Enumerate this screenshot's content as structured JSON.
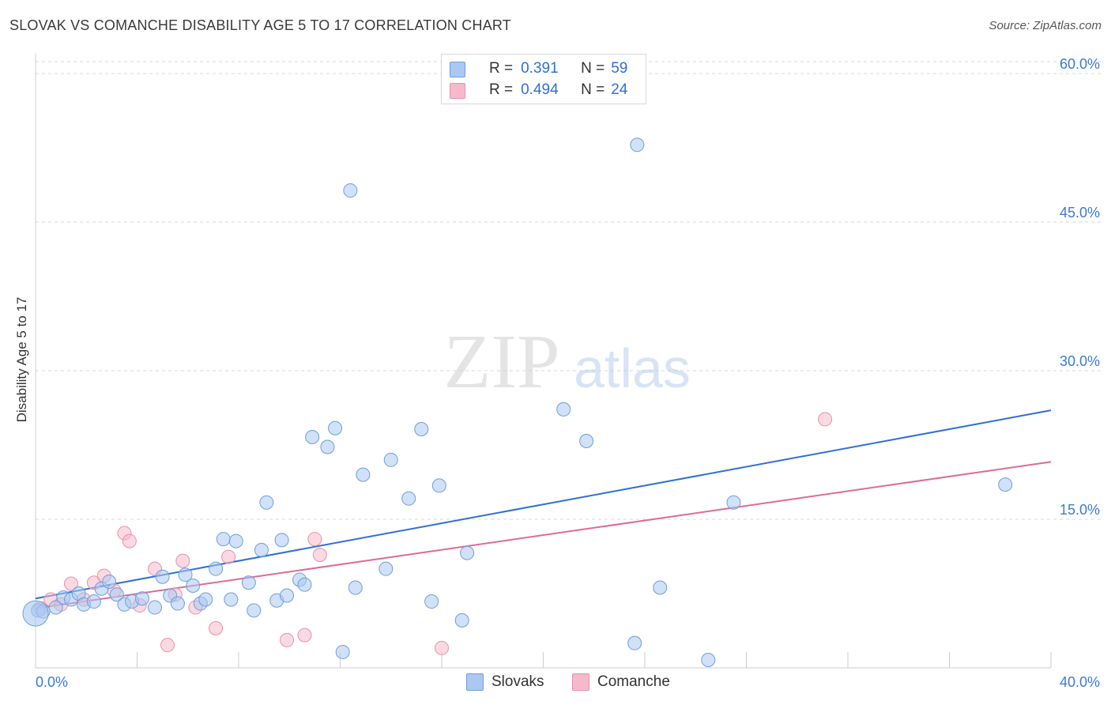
{
  "header": {
    "title": "SLOVAK VS COMANCHE DISABILITY AGE 5 TO 17 CORRELATION CHART",
    "source": "Source: ZipAtlas.com"
  },
  "watermark": {
    "zip": "ZIP",
    "atlas": "atlas"
  },
  "legend": {
    "r_label": "R =",
    "n_label": "N =",
    "rows": [
      {
        "r": "0.391",
        "n": "59",
        "color": "#aac8f2"
      },
      {
        "r": "0.494",
        "n": "24",
        "color": "#f6b9cb"
      }
    ]
  },
  "colors": {
    "slovaks_fill": "#aac8f2",
    "slovaks_stroke": "#6f9fd8",
    "slovaks_line": "#2f6fd6",
    "comanche_fill": "#f6b9cb",
    "comanche_stroke": "#e592ad",
    "comanche_line": "#e06a94",
    "tick_label": "#3b7bd4",
    "grid": "#d9d9d9"
  },
  "chart_data": {
    "type": "scatter",
    "title": "SLOVAK VS COMANCHE DISABILITY AGE 5 TO 17 CORRELATION CHART",
    "xlabel": "",
    "ylabel": "Disability Age 5 to 17",
    "xlim": [
      0,
      40
    ],
    "ylim": [
      0,
      62
    ],
    "x_tick_labels": [
      "0.0%",
      "40.0%"
    ],
    "y_ticks": [
      15,
      30,
      45,
      60
    ],
    "y_tick_labels": [
      "15.0%",
      "30.0%",
      "45.0%",
      "60.0%"
    ],
    "grid": "horizontal-dashed",
    "legend_position": "top-center",
    "series": [
      {
        "name": "Slovaks",
        "points": [
          [
            0.1,
            5.8
          ],
          [
            0.3,
            5.7
          ],
          [
            0.8,
            6.1
          ],
          [
            1.1,
            7.1
          ],
          [
            1.4,
            6.9
          ],
          [
            1.7,
            7.5
          ],
          [
            1.9,
            6.4
          ],
          [
            2.3,
            6.7
          ],
          [
            2.6,
            8.0
          ],
          [
            2.9,
            8.7
          ],
          [
            3.2,
            7.4
          ],
          [
            3.5,
            6.4
          ],
          [
            3.8,
            6.7
          ],
          [
            4.2,
            7.0
          ],
          [
            4.7,
            6.1
          ],
          [
            5.0,
            9.2
          ],
          [
            5.3,
            7.3
          ],
          [
            5.6,
            6.5
          ],
          [
            5.9,
            9.4
          ],
          [
            6.2,
            8.3
          ],
          [
            6.5,
            6.5
          ],
          [
            6.7,
            6.9
          ],
          [
            7.1,
            10.0
          ],
          [
            7.4,
            13.0
          ],
          [
            7.7,
            6.9
          ],
          [
            7.9,
            12.8
          ],
          [
            8.4,
            8.6
          ],
          [
            8.6,
            5.8
          ],
          [
            8.9,
            11.9
          ],
          [
            9.1,
            16.7
          ],
          [
            9.5,
            6.8
          ],
          [
            9.7,
            12.9
          ],
          [
            9.9,
            7.3
          ],
          [
            10.4,
            8.9
          ],
          [
            10.6,
            8.4
          ],
          [
            10.9,
            23.3
          ],
          [
            11.5,
            22.3
          ],
          [
            11.8,
            24.2
          ],
          [
            12.1,
            1.6
          ],
          [
            12.4,
            48.2
          ],
          [
            12.6,
            8.1
          ],
          [
            12.9,
            19.5
          ],
          [
            13.8,
            10.0
          ],
          [
            14.0,
            21.0
          ],
          [
            14.7,
            17.1
          ],
          [
            15.2,
            24.1
          ],
          [
            15.6,
            6.7
          ],
          [
            15.9,
            18.4
          ],
          [
            16.8,
            4.8
          ],
          [
            17.0,
            11.6
          ],
          [
            20.8,
            26.1
          ],
          [
            21.7,
            22.9
          ],
          [
            23.6,
            2.5
          ],
          [
            23.7,
            52.8
          ],
          [
            24.6,
            8.1
          ],
          [
            26.5,
            0.8
          ],
          [
            27.5,
            16.7
          ],
          [
            38.2,
            18.5
          ],
          [
            0.0,
            5.5
          ]
        ],
        "trend": {
          "x": [
            0,
            40
          ],
          "y": [
            7.0,
            26.0
          ]
        }
      },
      {
        "name": "Comanche",
        "points": [
          [
            0.2,
            6.0
          ],
          [
            0.6,
            6.9
          ],
          [
            1.0,
            6.4
          ],
          [
            1.4,
            8.5
          ],
          [
            1.9,
            6.9
          ],
          [
            2.3,
            8.6
          ],
          [
            2.7,
            9.3
          ],
          [
            3.1,
            7.8
          ],
          [
            3.5,
            13.6
          ],
          [
            3.7,
            12.8
          ],
          [
            4.1,
            6.3
          ],
          [
            4.7,
            10.0
          ],
          [
            5.2,
            2.3
          ],
          [
            5.5,
            7.4
          ],
          [
            5.8,
            10.8
          ],
          [
            6.3,
            6.1
          ],
          [
            7.1,
            4.0
          ],
          [
            7.6,
            11.2
          ],
          [
            9.9,
            2.8
          ],
          [
            10.6,
            3.3
          ],
          [
            11.0,
            13.0
          ],
          [
            11.2,
            11.4
          ],
          [
            16.0,
            2.0
          ],
          [
            31.1,
            25.1
          ]
        ],
        "trend": {
          "x": [
            0,
            40
          ],
          "y": [
            6.0,
            20.8
          ]
        }
      }
    ]
  }
}
